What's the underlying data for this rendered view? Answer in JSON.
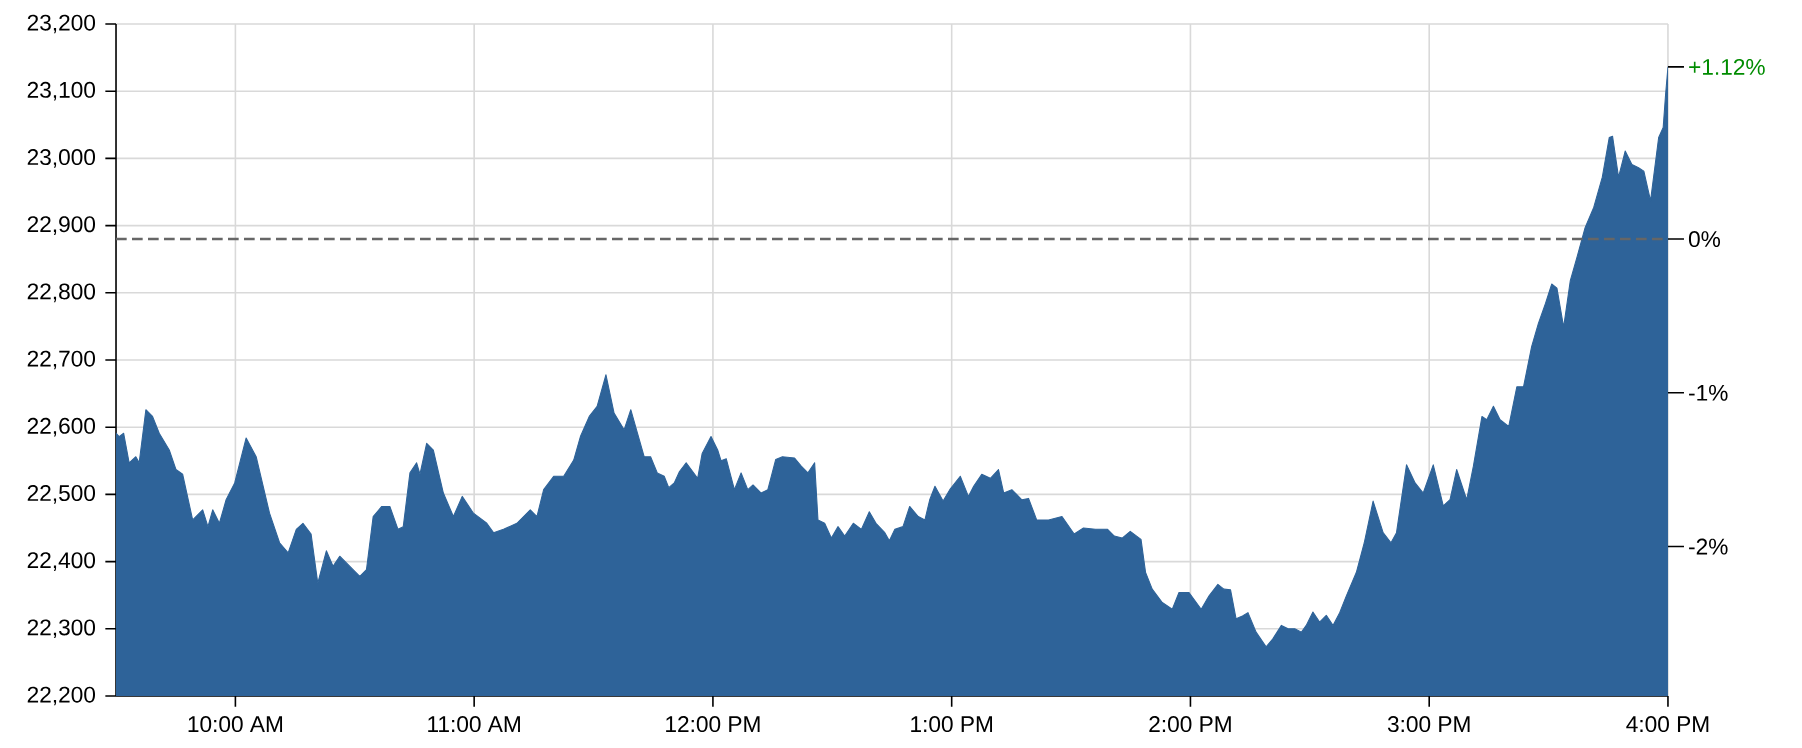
{
  "chart_data": {
    "type": "area",
    "x": [
      9.5,
      9.513,
      9.532,
      9.555,
      9.583,
      9.597,
      9.625,
      9.653,
      9.681,
      9.723,
      9.751,
      9.779,
      9.821,
      9.863,
      9.885,
      9.905,
      9.933,
      9.961,
      9.997,
      10.045,
      10.087,
      10.143,
      10.185,
      10.221,
      10.255,
      10.283,
      10.317,
      10.345,
      10.381,
      10.409,
      10.437,
      10.465,
      10.493,
      10.521,
      10.549,
      10.577,
      10.613,
      10.647,
      10.681,
      10.703,
      10.731,
      10.759,
      10.773,
      10.801,
      10.829,
      10.871,
      10.913,
      10.95,
      10.997,
      11.053,
      11.081,
      11.123,
      11.179,
      11.235,
      11.263,
      11.291,
      11.333,
      11.375,
      11.417,
      11.445,
      11.482,
      11.515,
      11.552,
      11.586,
      11.628,
      11.656,
      11.684,
      11.712,
      11.739,
      11.767,
      11.796,
      11.815,
      11.838,
      11.86,
      11.888,
      11.936,
      11.955,
      11.992,
      12.02,
      12.034,
      12.056,
      12.09,
      12.118,
      12.146,
      12.168,
      12.202,
      12.23,
      12.263,
      12.291,
      12.342,
      12.37,
      12.398,
      12.426,
      12.44,
      12.468,
      12.496,
      12.524,
      12.552,
      12.588,
      12.622,
      12.655,
      12.683,
      12.72,
      12.739,
      12.762,
      12.796,
      12.824,
      12.86,
      12.888,
      12.908,
      12.93,
      12.964,
      12.992,
      13.036,
      13.07,
      13.092,
      13.126,
      13.162,
      13.196,
      13.218,
      13.252,
      13.294,
      13.322,
      13.356,
      13.406,
      13.462,
      13.513,
      13.552,
      13.602,
      13.653,
      13.681,
      13.714,
      13.748,
      13.793,
      13.812,
      13.84,
      13.882,
      13.924,
      13.952,
      13.994,
      14.045,
      14.078,
      14.115,
      14.14,
      14.168,
      14.191,
      14.218,
      14.241,
      14.275,
      14.317,
      14.345,
      14.381,
      14.409,
      14.437,
      14.465,
      14.485,
      14.513,
      14.541,
      14.569,
      14.597,
      14.625,
      14.653,
      14.695,
      14.728,
      14.765,
      14.807,
      14.84,
      14.863,
      14.905,
      14.941,
      14.975,
      15.017,
      15.059,
      15.087,
      15.115,
      15.157,
      15.185,
      15.221,
      15.241,
      15.269,
      15.297,
      15.333,
      15.367,
      15.395,
      15.429,
      15.457,
      15.487,
      15.513,
      15.535,
      15.563,
      15.591,
      15.619,
      15.653,
      15.689,
      15.725,
      15.754,
      15.768,
      15.793,
      15.821,
      15.849,
      15.877,
      15.899,
      15.927,
      15.961,
      15.98,
      15.99,
      16
    ],
    "series": [
      {
        "color": "#2e6399",
        "values": [
          22591,
          22586,
          22591,
          22547,
          22556,
          22547,
          22626,
          22616,
          22591,
          22566,
          22537,
          22530,
          22462,
          22477,
          22452,
          22477,
          22457,
          22492,
          22517,
          22584,
          22556,
          22472,
          22428,
          22413,
          22448,
          22457,
          22441,
          22368,
          22416,
          22393,
          22408,
          22398,
          22388,
          22378,
          22388,
          22467,
          22482,
          22482,
          22448,
          22452,
          22532,
          22547,
          22530,
          22576,
          22566,
          22502,
          22467,
          22497,
          22472,
          22457,
          22443,
          22448,
          22457,
          22477,
          22467,
          22507,
          22527,
          22527,
          22551,
          22586,
          22616,
          22631,
          22678,
          22621,
          22596,
          22626,
          22591,
          22556,
          22556,
          22532,
          22527,
          22510,
          22517,
          22534,
          22547,
          22524,
          22561,
          22586,
          22566,
          22550,
          22553,
          22507,
          22532,
          22507,
          22514,
          22502,
          22507,
          22552,
          22556,
          22554,
          22542,
          22532,
          22547,
          22462,
          22457,
          22435,
          22452,
          22438,
          22457,
          22448,
          22474,
          22457,
          22443,
          22431,
          22448,
          22452,
          22482,
          22467,
          22462,
          22492,
          22512,
          22490,
          22507,
          22527,
          22497,
          22512,
          22530,
          22524,
          22537,
          22502,
          22507,
          22492,
          22494,
          22462,
          22462,
          22467,
          22441,
          22450,
          22448,
          22448,
          22438,
          22435,
          22445,
          22433,
          22384,
          22359,
          22339,
          22329,
          22354,
          22354,
          22329,
          22349,
          22366,
          22359,
          22358,
          22315,
          22319,
          22324,
          22295,
          22273,
          22285,
          22305,
          22300,
          22300,
          22295,
          22305,
          22325,
          22310,
          22320,
          22305,
          22324,
          22349,
          22384,
          22428,
          22490,
          22443,
          22428,
          22443,
          22544,
          22517,
          22502,
          22544,
          22483,
          22492,
          22537,
          22492,
          22542,
          22616,
          22611,
          22631,
          22611,
          22601,
          22660,
          22660,
          22720,
          22754,
          22784,
          22813,
          22807,
          22749,
          22818,
          22853,
          22897,
          22927,
          22972,
          23031,
          23033,
          22972,
          23011,
          22991,
          22986,
          22981,
          22937,
          23031,
          23046,
          23095,
          23136
        ]
      }
    ],
    "xlim": [
      9.5,
      16
    ],
    "xticks": [
      {
        "value": 10,
        "label": "10:00 AM"
      },
      {
        "value": 11,
        "label": "11:00 AM"
      },
      {
        "value": 12,
        "label": "12:00 PM"
      },
      {
        "value": 13,
        "label": "1:00 PM"
      },
      {
        "value": 14,
        "label": "2:00 PM"
      },
      {
        "value": 15,
        "label": "3:00 PM"
      },
      {
        "value": 16,
        "label": "4:00 PM"
      }
    ],
    "ylim": [
      22200,
      23200
    ],
    "yticks": [
      {
        "value": 22200,
        "label": "22,200"
      },
      {
        "value": 22300,
        "label": "22,300"
      },
      {
        "value": 22400,
        "label": "22,400"
      },
      {
        "value": 22500,
        "label": "22,500"
      },
      {
        "value": 22600,
        "label": "22,600"
      },
      {
        "value": 22700,
        "label": "22,700"
      },
      {
        "value": 22800,
        "label": "22,800"
      },
      {
        "value": 22900,
        "label": "22,900"
      },
      {
        "value": 23000,
        "label": "23,000"
      },
      {
        "value": 23100,
        "label": "23,100"
      },
      {
        "value": 23200,
        "label": "23,200"
      }
    ],
    "y2lim": [
      -2.972,
      1.399
    ],
    "y2ticks": [
      {
        "value": -2,
        "label": "-2%"
      },
      {
        "value": -1,
        "label": "-1%"
      },
      {
        "value": 0,
        "label": "0%"
      },
      {
        "value": 1.12,
        "label": "+1.12%"
      }
    ],
    "ref_lines": [
      {
        "axis": "y",
        "value": 22880,
        "color": "#666666",
        "line_style": "dashed"
      }
    ],
    "grid": true
  }
}
